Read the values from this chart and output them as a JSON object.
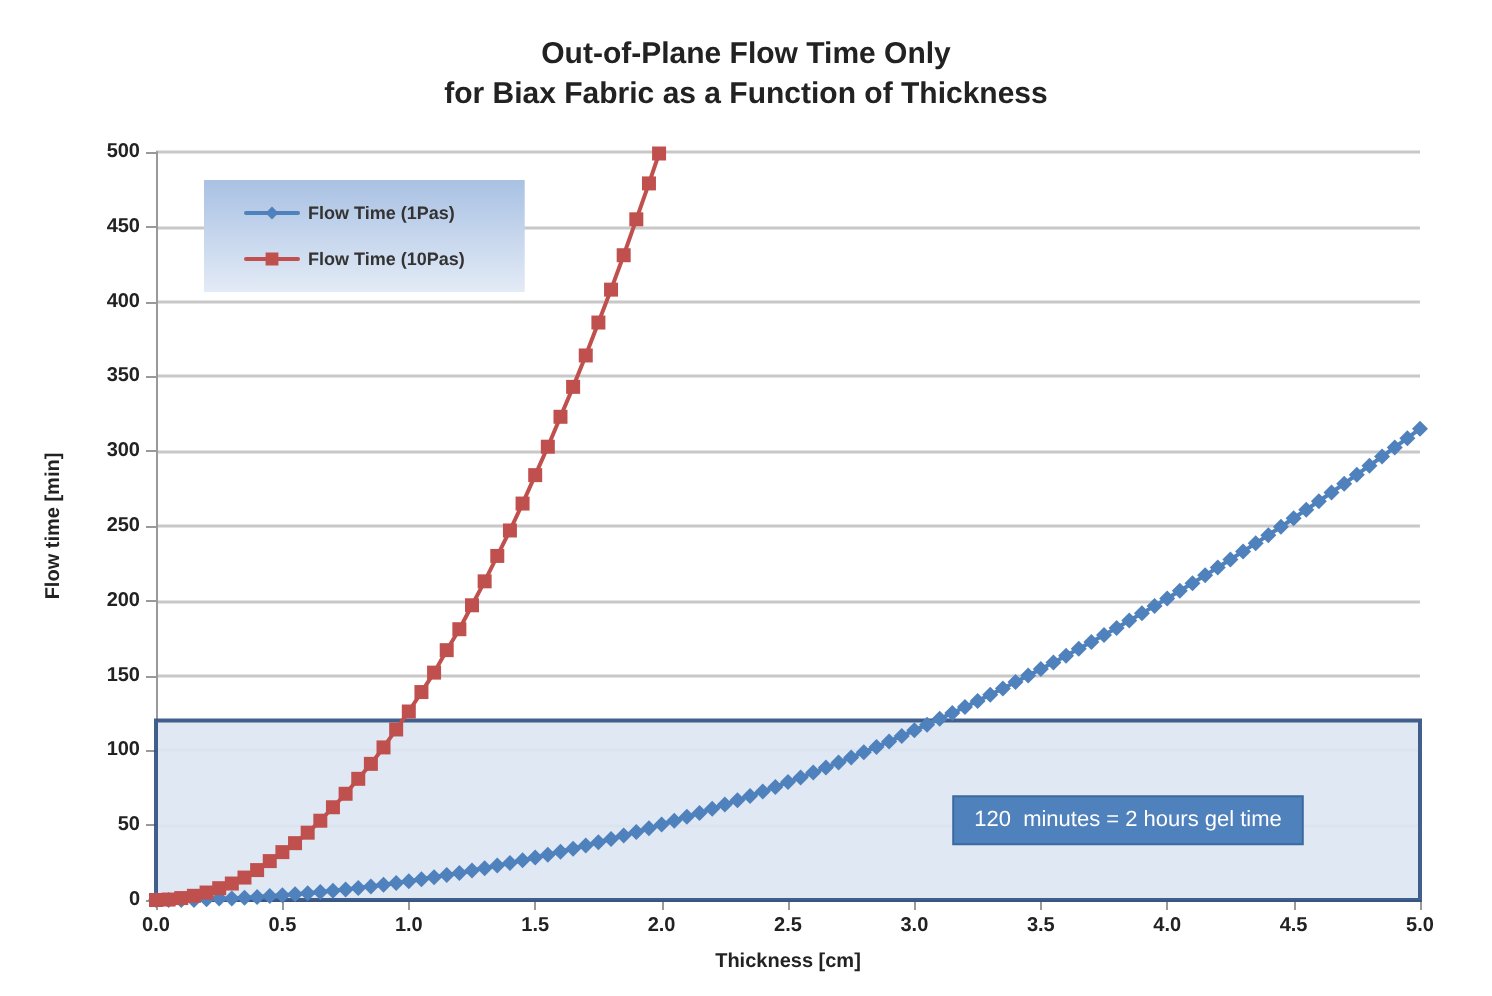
{
  "chart_data": {
    "type": "line",
    "title": "Out-of-Plane Flow Time Only\nfor Biax Fabric as a Function of Thickness",
    "xlabel": "Thickness [cm]",
    "ylabel": "Flow time [min]",
    "xlim": [
      0,
      5
    ],
    "ylim": [
      0,
      500
    ],
    "xticks": [
      {
        "value": 0,
        "label": "0.0"
      },
      {
        "value": 0.5,
        "label": "0.5"
      },
      {
        "value": 1,
        "label": "1.0"
      },
      {
        "value": 1.5,
        "label": "1.5"
      },
      {
        "value": 2,
        "label": "2.0"
      },
      {
        "value": 2.5,
        "label": "2.5"
      },
      {
        "value": 3,
        "label": "3.0"
      },
      {
        "value": 3.5,
        "label": "3.5"
      },
      {
        "value": 4,
        "label": "4.0"
      },
      {
        "value": 4.5,
        "label": "4.5"
      },
      {
        "value": 5,
        "label": "5.0"
      }
    ],
    "yticks": [
      0,
      50,
      100,
      150,
      200,
      250,
      300,
      350,
      400,
      450,
      500
    ],
    "grid": "y",
    "legend": "top left",
    "bands": [
      {
        "axis": "y",
        "from": 0,
        "to": 120,
        "label": "120  minutes = 2 hours gel time",
        "color": "#dce6f2"
      }
    ],
    "series": [
      {
        "name": "Flow Time (1Pas)",
        "color": "#4f81bd",
        "marker": "diamond",
        "x": [
          0,
          0.05,
          0.1,
          0.15,
          0.2,
          0.25,
          0.3,
          0.35,
          0.4,
          0.45,
          0.5,
          0.55,
          0.6,
          0.65,
          0.7,
          0.75,
          0.8,
          0.85,
          0.9,
          0.95,
          1,
          1.05,
          1.1,
          1.15,
          1.2,
          1.25,
          1.3,
          1.35,
          1.4,
          1.45,
          1.5,
          1.55,
          1.6,
          1.65,
          1.7,
          1.75,
          1.8,
          1.85,
          1.9,
          1.95,
          2,
          2.05,
          2.1,
          2.15,
          2.2,
          2.25,
          2.3,
          2.35,
          2.4,
          2.45,
          2.5,
          2.55,
          2.6,
          2.65,
          2.7,
          2.75,
          2.8,
          2.85,
          2.9,
          2.95,
          3,
          3.05,
          3.1,
          3.15,
          3.2,
          3.25,
          3.3,
          3.35,
          3.4,
          3.45,
          3.5,
          3.55,
          3.6,
          3.65,
          3.7,
          3.75,
          3.8,
          3.85,
          3.9,
          3.95,
          4,
          4.05,
          4.1,
          4.15,
          4.2,
          4.25,
          4.3,
          4.35,
          4.4,
          4.45,
          4.5,
          4.55,
          4.6,
          4.65,
          4.7,
          4.75,
          4.8,
          4.85,
          4.9,
          4.95,
          5
        ],
        "values": [
          0,
          0,
          0,
          0,
          0.5,
          1,
          1,
          1.5,
          2,
          2.6,
          3.2,
          3.8,
          4.5,
          5.3,
          6.2,
          7.1,
          8.1,
          9.1,
          10.2,
          11.4,
          12.6,
          13.9,
          15.2,
          16.7,
          18.1,
          19.7,
          21.3,
          23,
          24.7,
          26.5,
          28.4,
          30.3,
          32.3,
          34.3,
          36.4,
          38.6,
          40.8,
          43.1,
          45.5,
          47.9,
          50.4,
          53,
          55.6,
          58.2,
          61,
          63.8,
          66.7,
          69.6,
          72.6,
          75.6,
          78.8,
          81.9,
          85.2,
          88.5,
          91.9,
          95.3,
          98.8,
          102.3,
          106,
          109.7,
          113.4,
          117.2,
          121.1,
          125,
          129,
          133.1,
          137.2,
          141.4,
          145.7,
          150,
          154.4,
          158.8,
          163.3,
          167.9,
          172.5,
          177.2,
          181.9,
          186.8,
          191.6,
          196.6,
          201.6,
          206.7,
          211.8,
          217,
          222.3,
          227.6,
          233,
          238.4,
          243.9,
          249.5,
          255.2,
          260.9,
          266.6,
          272.4,
          278.3,
          284.3,
          290.3,
          296.4,
          302.5,
          308.7,
          315
        ]
      },
      {
        "name": "Flow Time (10Pas)",
        "color": "#c0504d",
        "marker": "square",
        "x": [
          0,
          0.05,
          0.1,
          0.15,
          0.2,
          0.25,
          0.3,
          0.35,
          0.4,
          0.45,
          0.5,
          0.55,
          0.6,
          0.65,
          0.7,
          0.75,
          0.8,
          0.85,
          0.9,
          0.95,
          1,
          1.05,
          1.1,
          1.15,
          1.2,
          1.25,
          1.3,
          1.35,
          1.4,
          1.45,
          1.5,
          1.55,
          1.6,
          1.65,
          1.7,
          1.75,
          1.8,
          1.85,
          1.9,
          1.95,
          1.99
        ],
        "values": [
          0,
          0.3,
          1.3,
          2.8,
          5,
          7.9,
          11,
          15,
          20,
          26,
          32,
          38,
          45,
          53,
          62,
          71,
          81,
          91,
          102,
          114,
          126,
          139,
          152,
          167,
          181,
          197,
          213,
          230,
          247,
          265,
          284,
          303,
          323,
          343,
          364,
          386,
          408,
          431,
          455,
          479,
          499
        ]
      }
    ]
  }
}
